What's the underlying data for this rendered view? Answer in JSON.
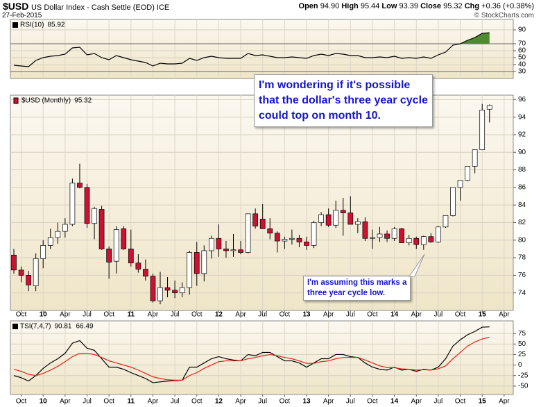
{
  "header": {
    "symbol": "$USD",
    "name": "US Dollar Index - Cash Settle (EOD) ICE",
    "date": "27-Feb-2015",
    "source": "© StockCharts.com",
    "quote": [
      {
        "label": "Open",
        "value": "94.90"
      },
      {
        "label": "High",
        "value": "95.44"
      },
      {
        "label": "Low",
        "value": "93.39"
      },
      {
        "label": "Close",
        "value": "95.32"
      },
      {
        "label": "Chg",
        "value": "+0.36 (+0.38%)"
      }
    ]
  },
  "chart_data": [
    {
      "type": "line",
      "ylim": [
        20,
        105
      ],
      "yticks": [
        30,
        40,
        50,
        60,
        70,
        90
      ],
      "levels": [
        70,
        30
      ],
      "fill_above": 70,
      "fill_color": "#4f8a2e",
      "grid": true,
      "series": [
        {
          "name": "RSI(10)",
          "color": "#000000",
          "values": [
            39,
            38,
            37,
            46,
            50,
            52,
            53,
            55,
            64,
            65,
            54,
            56,
            50,
            47,
            53,
            50,
            47,
            45,
            43,
            38,
            42,
            41,
            41,
            42,
            49,
            46,
            50,
            52,
            50,
            49,
            49,
            49,
            56,
            53,
            54,
            52,
            50,
            50,
            51,
            50,
            49,
            53,
            55,
            53,
            56,
            55,
            53,
            53,
            50,
            50,
            51,
            50,
            52,
            49,
            50,
            49,
            51,
            49,
            54,
            58,
            68,
            70,
            75,
            79,
            85,
            85.92
          ]
        }
      ]
    },
    {
      "type": "candlestick",
      "name": "$USD (Monthly)",
      "ylim": [
        72,
        96.5
      ],
      "yticks": [
        74,
        76,
        78,
        80,
        82,
        84,
        86,
        88,
        90,
        92,
        94,
        96
      ],
      "grid": true,
      "up_color": "#ffffff",
      "down_color": "#cc1133",
      "x": [
        "2009-09",
        "2009-10",
        "2009-11",
        "2009-12",
        "2010-01",
        "2010-02",
        "2010-03",
        "2010-04",
        "2010-05",
        "2010-06",
        "2010-07",
        "2010-08",
        "2010-09",
        "2010-10",
        "2010-11",
        "2010-12",
        "2011-01",
        "2011-02",
        "2011-03",
        "2011-04",
        "2011-05",
        "2011-06",
        "2011-07",
        "2011-08",
        "2011-09",
        "2011-10",
        "2011-11",
        "2011-12",
        "2012-01",
        "2012-02",
        "2012-03",
        "2012-04",
        "2012-05",
        "2012-06",
        "2012-07",
        "2012-08",
        "2012-09",
        "2012-10",
        "2012-11",
        "2012-12",
        "2013-01",
        "2013-02",
        "2013-03",
        "2013-04",
        "2013-05",
        "2013-06",
        "2013-07",
        "2013-08",
        "2013-09",
        "2013-10",
        "2013-11",
        "2013-12",
        "2014-01",
        "2014-02",
        "2014-03",
        "2014-04",
        "2014-05",
        "2014-06",
        "2014-07",
        "2014-08",
        "2014-09",
        "2014-10",
        "2014-11",
        "2014-12",
        "2015-01",
        "2015-02"
      ],
      "xticks": [
        {
          "value": "2009-10",
          "label": "Oct"
        },
        {
          "value": "2010-01",
          "label": "10"
        },
        {
          "value": "2010-04",
          "label": "Apr"
        },
        {
          "value": "2010-07",
          "label": "Jul"
        },
        {
          "value": "2010-10",
          "label": "Oct"
        },
        {
          "value": "2011-01",
          "label": "11"
        },
        {
          "value": "2011-04",
          "label": "Apr"
        },
        {
          "value": "2011-07",
          "label": "Jul"
        },
        {
          "value": "2011-10",
          "label": "Oct"
        },
        {
          "value": "2012-01",
          "label": "12"
        },
        {
          "value": "2012-04",
          "label": "Apr"
        },
        {
          "value": "2012-07",
          "label": "Jul"
        },
        {
          "value": "2012-10",
          "label": "Oct"
        },
        {
          "value": "2013-01",
          "label": "13"
        },
        {
          "value": "2013-04",
          "label": "Apr"
        },
        {
          "value": "2013-07",
          "label": "Jul"
        },
        {
          "value": "2013-10",
          "label": "Oct"
        },
        {
          "value": "2014-01",
          "label": "14"
        },
        {
          "value": "2014-04",
          "label": "Apr"
        },
        {
          "value": "2014-07",
          "label": "Jul"
        },
        {
          "value": "2014-10",
          "label": "Oct"
        },
        {
          "value": "2015-01",
          "label": "15"
        },
        {
          "value": "2015-04",
          "label": "Apr"
        }
      ],
      "open": [
        78.3,
        76.6,
        76.0,
        74.8,
        77.9,
        79.4,
        80.3,
        81.0,
        81.8,
        86.5,
        86.0,
        81.9,
        83.5,
        79.0,
        77.6,
        81.3,
        79.0,
        77.4,
        76.7,
        75.9,
        73.1,
        74.6,
        74.3,
        74.0,
        74.6,
        78.6,
        76.2,
        78.8,
        80.2,
        79.0,
        78.8,
        78.9,
        78.6,
        83.0,
        82.4,
        81.3,
        80.8,
        79.9,
        80.1,
        80.2,
        79.8,
        79.4,
        82.0,
        82.9,
        81.7,
        83.4,
        83.1,
        81.8,
        82.1,
        80.2,
        80.3,
        80.7,
        80.2,
        81.3,
        79.7,
        80.2,
        79.5,
        80.4,
        79.8,
        81.5,
        82.8,
        86.0,
        86.8,
        88.4,
        90.3,
        94.9
      ],
      "high": [
        79.0,
        77.0,
        76.5,
        78.5,
        80.0,
        81.3,
        82.0,
        82.5,
        87.0,
        88.7,
        86.4,
        83.8,
        83.9,
        79.3,
        81.6,
        81.6,
        81.2,
        78.4,
        77.8,
        76.2,
        76.4,
        75.8,
        75.4,
        75.2,
        78.8,
        79.8,
        79.4,
        80.5,
        81.8,
        79.9,
        80.7,
        79.9,
        83.0,
        83.6,
        84.1,
        82.5,
        81.0,
        80.4,
        81.2,
        80.6,
        80.4,
        82.2,
        83.2,
        83.6,
        84.5,
        84.8,
        85.0,
        82.5,
        82.6,
        81.2,
        81.5,
        81.1,
        81.5,
        81.4,
        80.6,
        80.4,
        80.5,
        80.8,
        81.6,
        82.8,
        86.0,
        86.8,
        88.4,
        90.3,
        95.5,
        95.44
      ],
      "low": [
        76.2,
        75.2,
        74.2,
        74.2,
        76.8,
        79.0,
        79.6,
        80.3,
        81.6,
        85.9,
        81.4,
        80.1,
        78.9,
        75.6,
        76.2,
        78.9,
        77.0,
        76.3,
        75.4,
        72.9,
        72.7,
        73.5,
        73.4,
        73.5,
        73.8,
        74.8,
        75.3,
        77.9,
        78.1,
        78.0,
        78.1,
        78.4,
        78.5,
        81.3,
        81.3,
        80.1,
        78.6,
        79.0,
        79.5,
        79.2,
        78.9,
        79.1,
        81.6,
        81.5,
        81.4,
        80.5,
        81.8,
        80.8,
        79.9,
        79.0,
        79.8,
        79.8,
        79.9,
        79.7,
        79.4,
        79.0,
        78.9,
        79.7,
        79.7,
        81.4,
        82.7,
        84.5,
        86.7,
        87.6,
        90.3,
        93.39
      ],
      "close": [
        76.6,
        76.0,
        74.9,
        77.9,
        79.4,
        80.3,
        81.0,
        81.8,
        86.5,
        86.0,
        81.9,
        83.6,
        79.0,
        77.5,
        81.2,
        79.0,
        77.4,
        76.7,
        75.9,
        73.1,
        74.6,
        74.3,
        74.0,
        74.6,
        78.6,
        76.2,
        78.8,
        80.2,
        79.0,
        78.8,
        78.9,
        78.6,
        83.0,
        81.6,
        81.3,
        80.8,
        79.9,
        80.1,
        80.2,
        79.8,
        79.4,
        82.0,
        82.9,
        81.7,
        83.4,
        83.1,
        81.8,
        82.1,
        80.2,
        80.3,
        80.7,
        80.2,
        81.3,
        79.7,
        80.2,
        79.5,
        80.4,
        79.8,
        81.5,
        82.8,
        86.0,
        86.8,
        88.4,
        90.3,
        94.8,
        95.32
      ],
      "annotations": [
        {
          "lines": [
            "I'm wondering if it's possible",
            "that the dollar's three year cycle",
            "could top on month 10."
          ]
        },
        {
          "lines": [
            "I'm assuming this marks a",
            "three year cycle low."
          ]
        }
      ]
    },
    {
      "type": "line",
      "ylim": [
        -70,
        105
      ],
      "yticks": [
        -50,
        -25,
        0,
        25,
        50,
        75
      ],
      "grid": true,
      "series": [
        {
          "name": "TSI(7,4,7)",
          "color": "#000000",
          "values": [
            -25,
            -30,
            -38,
            -25,
            -8,
            5,
            15,
            28,
            52,
            58,
            40,
            35,
            15,
            -5,
            -5,
            -10,
            -18,
            -25,
            -32,
            -42,
            -40,
            -38,
            -37,
            -36,
            -5,
            -5,
            5,
            15,
            20,
            15,
            12,
            10,
            25,
            22,
            30,
            30,
            20,
            10,
            10,
            5,
            -5,
            5,
            15,
            15,
            25,
            25,
            20,
            18,
            5,
            -5,
            -10,
            -12,
            -5,
            -12,
            -10,
            -15,
            -10,
            -12,
            -5,
            15,
            45,
            60,
            72,
            80,
            90,
            90.81
          ]
        },
        {
          "name": "Signal",
          "color": "#e8201a",
          "values": [
            -10,
            -15,
            -22,
            -25,
            -20,
            -12,
            -3,
            8,
            20,
            28,
            28,
            25,
            18,
            10,
            5,
            0,
            -5,
            -12,
            -20,
            -28,
            -32,
            -35,
            -36,
            -36,
            -25,
            -18,
            -8,
            0,
            8,
            10,
            10,
            10,
            15,
            18,
            22,
            25,
            22,
            18,
            15,
            10,
            4,
            4,
            8,
            10,
            15,
            18,
            18,
            18,
            12,
            5,
            -2,
            -6,
            -6,
            -9,
            -10,
            -12,
            -11,
            -12,
            -9,
            -2,
            15,
            30,
            45,
            55,
            62,
            66.49
          ]
        }
      ]
    }
  ]
}
